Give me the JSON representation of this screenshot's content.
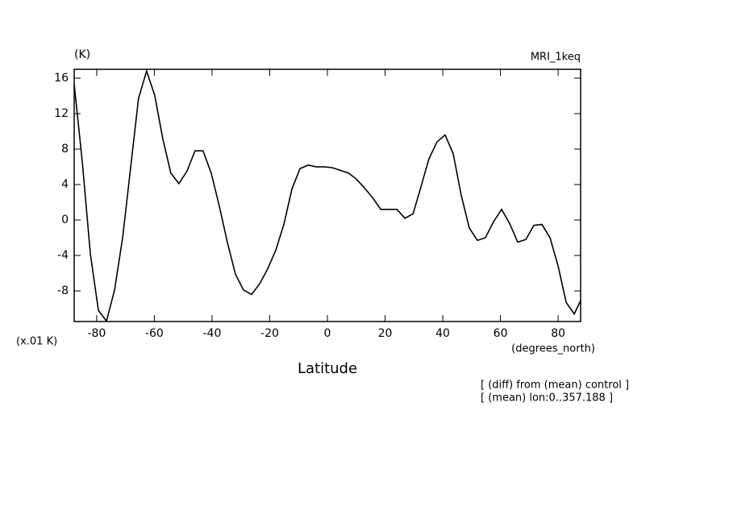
{
  "chart_data": {
    "type": "line",
    "title": "MRI_1keq",
    "y_unit_label": "(K)",
    "y_scale_label": "(x.01 K)",
    "x_unit_label": "(degrees_north)",
    "xlabel": "Latitude",
    "annotations": [
      "[ (diff) from (mean) control ]",
      "[ (mean) lon:0..357.188 ]"
    ],
    "color": "#000000",
    "x": [
      -87.8,
      -85.0,
      -82.2,
      -79.4,
      -76.6,
      -73.8,
      -71.0,
      -68.3,
      -65.5,
      -62.7,
      -59.9,
      -57.1,
      -54.3,
      -51.5,
      -48.7,
      -45.9,
      -43.1,
      -40.3,
      -37.5,
      -34.7,
      -31.9,
      -29.1,
      -26.3,
      -23.5,
      -20.7,
      -17.9,
      -15.1,
      -12.3,
      -9.5,
      -6.7,
      -3.9,
      -1.1,
      1.7,
      4.5,
      7.3,
      10.1,
      12.9,
      15.7,
      18.5,
      21.3,
      24.1,
      26.9,
      29.7,
      32.4,
      35.2,
      38.0,
      40.8,
      43.6,
      46.4,
      49.2,
      52.0,
      54.8,
      57.6,
      60.4,
      63.2,
      66.0,
      68.8,
      71.6,
      74.4,
      77.2,
      80.0,
      82.8,
      85.6,
      87.8
    ],
    "values": [
      15.3,
      6.6,
      -3.8,
      -10.2,
      -11.4,
      -7.9,
      -2.0,
      5.7,
      13.7,
      16.8,
      14.1,
      9.2,
      5.3,
      4.1,
      5.5,
      7.8,
      7.8,
      5.3,
      1.6,
      -2.5,
      -6.1,
      -7.9,
      -8.4,
      -7.2,
      -5.5,
      -3.4,
      -0.5,
      3.5,
      5.8,
      6.2,
      6.0,
      6.0,
      5.9,
      5.6,
      5.3,
      4.6,
      3.6,
      2.5,
      1.2,
      1.2,
      1.2,
      0.2,
      0.7,
      3.7,
      6.9,
      8.8,
      9.6,
      7.5,
      2.8,
      -0.9,
      -2.3,
      -2.0,
      -0.2,
      1.2,
      -0.4,
      -2.5,
      -2.2,
      -0.6,
      -0.5,
      -2.0,
      -5.2,
      -9.3,
      -10.6,
      -9.1
    ],
    "xlim": [
      -87.8,
      87.8
    ],
    "xticks": [
      -80,
      -60,
      -40,
      -20,
      0,
      20,
      40,
      60,
      80
    ],
    "ylim": [
      -11.45,
      17
    ],
    "yticks": [
      -8,
      -4,
      0,
      4,
      8,
      12,
      16
    ]
  }
}
